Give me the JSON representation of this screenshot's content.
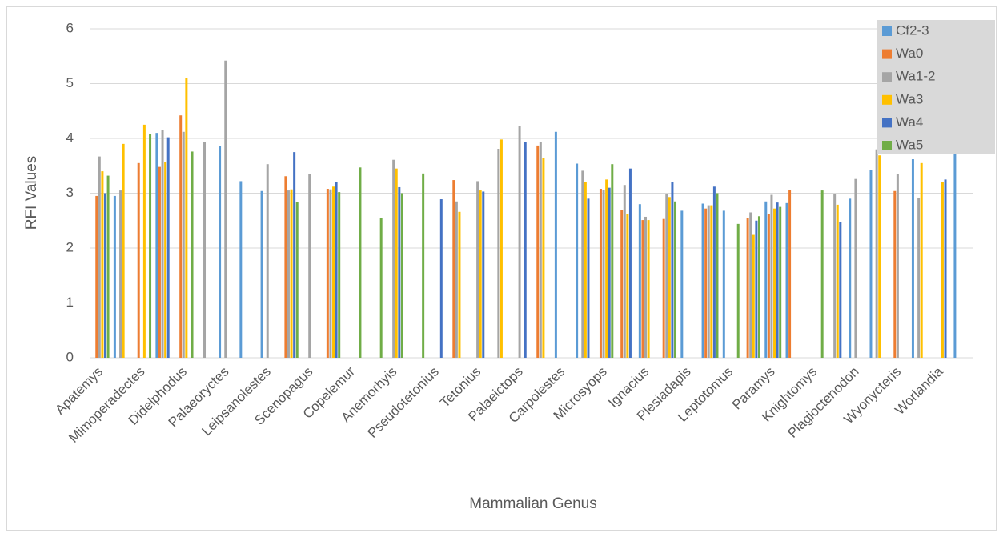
{
  "chart_data": {
    "type": "bar",
    "x_label": "Mammalian Genus",
    "y_label": "RFI Values",
    "categories": [
      "Apatemys",
      null,
      "Mimoperadectes",
      null,
      "Didelphodus",
      null,
      "Palaeoryctes",
      null,
      "Leipsanolestes",
      null,
      "Scenopagus",
      null,
      "Copelemur",
      null,
      "Anemorhyis",
      null,
      "Pseudotetonius",
      null,
      "Tetonius",
      null,
      "Palaeictops",
      null,
      "Carpolestes",
      null,
      "Microsyops",
      null,
      "Ignacius",
      null,
      "Plesiadapis",
      null,
      "Leptotomus",
      null,
      "Paramys",
      null,
      "Knightomys",
      null,
      "Plagioctenodon",
      null,
      "Wyonycteris",
      null,
      "Worlandia",
      null
    ],
    "series": [
      {
        "name": "Cf2-3",
        "color": "#5b9bd5",
        "values": [
          null,
          2.95,
          null,
          4.1,
          null,
          null,
          3.86,
          3.22,
          3.04,
          null,
          null,
          null,
          null,
          null,
          null,
          null,
          null,
          null,
          null,
          null,
          null,
          null,
          4.12,
          3.54,
          null,
          null,
          2.8,
          null,
          2.68,
          2.81,
          2.68,
          null,
          2.85,
          2.82,
          null,
          null,
          2.9,
          3.42,
          null,
          3.62,
          null,
          3.87
        ]
      },
      {
        "name": "Wa0",
        "color": "#ed7d31",
        "values": [
          2.95,
          null,
          3.55,
          3.48,
          4.42,
          null,
          null,
          null,
          null,
          3.31,
          null,
          3.08,
          null,
          null,
          null,
          null,
          null,
          3.24,
          null,
          null,
          null,
          3.87,
          null,
          null,
          3.08,
          2.69,
          2.51,
          2.53,
          null,
          2.72,
          null,
          2.54,
          2.62,
          3.06,
          null,
          null,
          null,
          null,
          3.04,
          null,
          null,
          null
        ]
      },
      {
        "name": "Wa1-2",
        "color": "#a5a5a5",
        "values": [
          3.67,
          3.05,
          null,
          4.15,
          4.12,
          3.94,
          5.42,
          null,
          3.53,
          3.05,
          3.35,
          3.07,
          null,
          null,
          3.61,
          null,
          null,
          2.85,
          3.22,
          3.81,
          4.22,
          3.94,
          null,
          3.41,
          3.06,
          3.15,
          2.57,
          2.99,
          null,
          2.78,
          null,
          2.65,
          2.97,
          null,
          null,
          2.99,
          3.26,
          3.8,
          3.35,
          2.92,
          null,
          null
        ]
      },
      {
        "name": "Wa3",
        "color": "#ffc000",
        "values": [
          3.4,
          3.9,
          4.25,
          3.57,
          5.1,
          null,
          null,
          null,
          null,
          3.07,
          null,
          3.12,
          null,
          null,
          3.45,
          null,
          null,
          2.66,
          3.05,
          3.98,
          null,
          3.64,
          null,
          3.2,
          3.25,
          2.62,
          2.51,
          2.93,
          null,
          2.78,
          null,
          2.24,
          2.72,
          null,
          null,
          2.79,
          null,
          3.69,
          null,
          3.55,
          3.21,
          null
        ]
      },
      {
        "name": "Wa4",
        "color": "#4472c4",
        "values": [
          3.0,
          null,
          null,
          4.02,
          null,
          null,
          null,
          null,
          null,
          3.75,
          null,
          3.21,
          null,
          null,
          3.11,
          null,
          2.89,
          null,
          3.03,
          null,
          3.93,
          null,
          null,
          2.9,
          3.1,
          3.45,
          null,
          3.2,
          null,
          3.12,
          null,
          2.5,
          2.83,
          null,
          null,
          2.47,
          null,
          null,
          null,
          null,
          3.25,
          null
        ]
      },
      {
        "name": "Wa5",
        "color": "#70ad47",
        "values": [
          3.32,
          null,
          4.08,
          null,
          3.76,
          null,
          null,
          null,
          null,
          2.84,
          null,
          3.02,
          3.47,
          2.55,
          3.0,
          3.36,
          null,
          null,
          null,
          null,
          null,
          null,
          null,
          null,
          3.53,
          null,
          null,
          2.85,
          null,
          3.0,
          2.44,
          2.58,
          2.75,
          null,
          3.05,
          null,
          null,
          null,
          null,
          null,
          null,
          null
        ]
      }
    ],
    "ylim": [
      0,
      6
    ],
    "yticks": [
      0,
      1,
      2,
      3,
      4,
      5,
      6
    ],
    "grid": true,
    "legend": "top-right"
  }
}
